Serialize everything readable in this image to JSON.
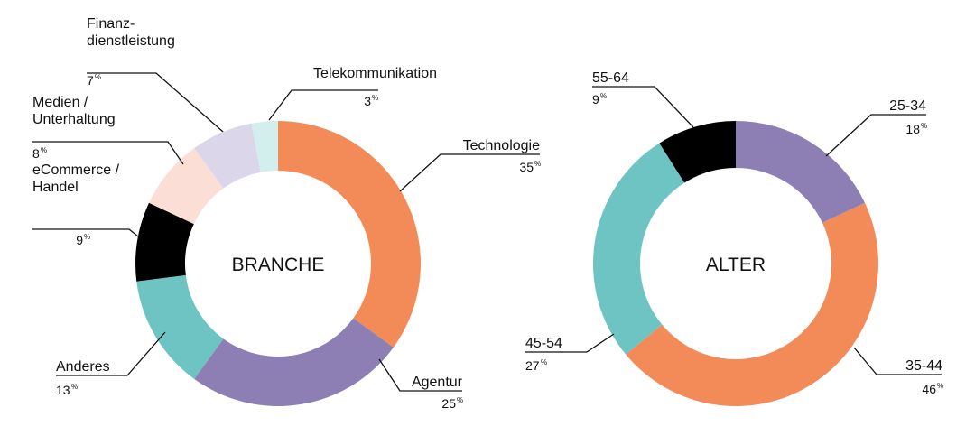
{
  "percent_symbol": "%",
  "chart_data": [
    {
      "type": "pie",
      "center_label": "BRANCHE",
      "slices": [
        {
          "label": [
            "Technologie"
          ],
          "value": 35,
          "color": "#f28b58"
        },
        {
          "label": [
            "Agentur"
          ],
          "value": 25,
          "color": "#8d7fb4"
        },
        {
          "label": [
            "Anderes"
          ],
          "value": 13,
          "color": "#6ec4c2"
        },
        {
          "label": [
            "eCommerce /",
            "Handel"
          ],
          "value": 9,
          "color": "#000000"
        },
        {
          "label": [
            "Medien /",
            "Unterhaltung"
          ],
          "value": 8,
          "color": "#fbdfd6"
        },
        {
          "label": [
            "Finanz-",
            "dienstleistung"
          ],
          "value": 7,
          "color": "#dcd6ea"
        },
        {
          "label": [
            "Telekommunikation"
          ],
          "value": 3,
          "color": "#d2eeed"
        }
      ]
    },
    {
      "type": "pie",
      "center_label": "ALTER",
      "slices": [
        {
          "label": [
            "25-34"
          ],
          "value": 18,
          "color": "#8d7fb4"
        },
        {
          "label": [
            "35-44"
          ],
          "value": 46,
          "color": "#f28b58"
        },
        {
          "label": [
            "45-54"
          ],
          "value": 27,
          "color": "#6ec4c2"
        },
        {
          "label": [
            "55-64"
          ],
          "value": 9,
          "color": "#000000"
        }
      ]
    }
  ]
}
